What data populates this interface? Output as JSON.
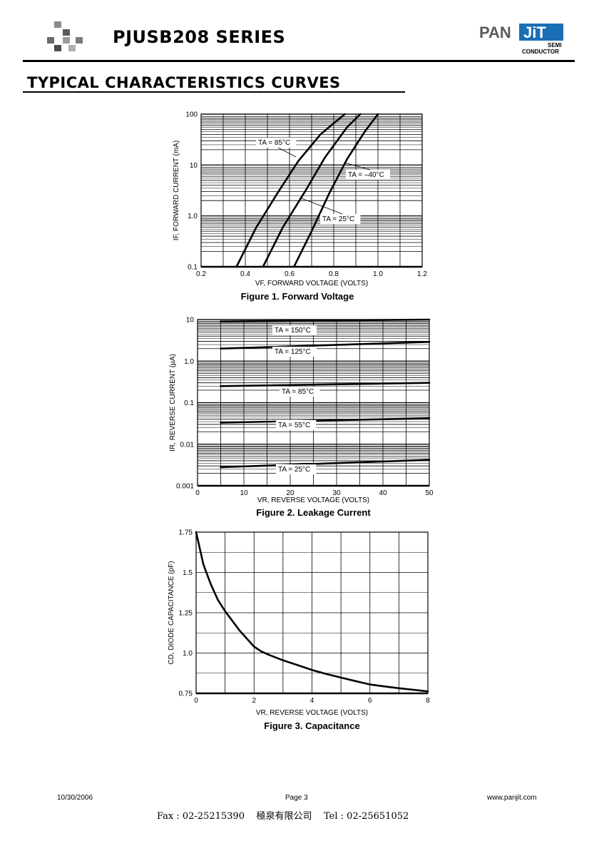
{
  "header": {
    "series_title": "PJUSB208 SERIES",
    "brand_pan": "PAN",
    "brand_jit": "JiT",
    "brand_semi": "SEMI",
    "brand_conductor": "CONDUCTOR",
    "brand_color": "#1a6fb5"
  },
  "section_title": "TYPICAL CHARACTERISTICS CURVES",
  "chart_data": [
    {
      "type": "line",
      "title": "Figure 1. Forward Voltage",
      "xlabel": "VF, FORWARD VOLTAGE (VOLTS)",
      "ylabel": "IF, FORWARD CURRENT (mA)",
      "xlim": [
        0.2,
        1.2
      ],
      "ylim": [
        0.1,
        100
      ],
      "yscale": "log",
      "grid": true,
      "xticks": [
        "0.2",
        "0.4",
        "0.6",
        "0.8",
        "1.0",
        "1.2"
      ],
      "yticks": [
        "0.1",
        "1.0",
        "10",
        "100"
      ],
      "series": [
        {
          "name": "TA = 85°C",
          "x": [
            0.36,
            0.45,
            0.55,
            0.64,
            0.74,
            0.85
          ],
          "y": [
            0.1,
            0.6,
            3.0,
            12,
            40,
            100
          ]
        },
        {
          "name": "TA = 25°C",
          "x": [
            0.48,
            0.57,
            0.67,
            0.76,
            0.86,
            0.92
          ],
          "y": [
            0.1,
            0.6,
            3.0,
            14,
            55,
            100
          ]
        },
        {
          "name": "TA = -40°C",
          "x": [
            0.62,
            0.7,
            0.78,
            0.86,
            0.94,
            1.0
          ],
          "y": [
            0.1,
            0.5,
            2.8,
            13,
            45,
            100
          ]
        }
      ],
      "annotations": [
        "TA = 85°C",
        "TA = –40°C",
        "TA = 25°C"
      ]
    },
    {
      "type": "line",
      "title": "Figure 2. Leakage Current",
      "xlabel": "VR, REVERSE VOLTAGE (VOLTS)",
      "ylabel": "IR, REVERSE CURRENT (µA)",
      "xlim": [
        0,
        50
      ],
      "ylim": [
        0.001,
        10
      ],
      "yscale": "log",
      "grid": true,
      "xticks": [
        "0",
        "10",
        "20",
        "30",
        "40",
        "50"
      ],
      "yticks": [
        "0.001",
        "0.01",
        "0.1",
        "1.0",
        "10"
      ],
      "series": [
        {
          "name": "TA = 150°C",
          "x": [
            5,
            50
          ],
          "y": [
            9.0,
            10.0
          ]
        },
        {
          "name": "TA = 125°C",
          "x": [
            5,
            50
          ],
          "y": [
            2.0,
            2.9
          ]
        },
        {
          "name": "TA = 85°C",
          "x": [
            5,
            50
          ],
          "y": [
            0.25,
            0.3
          ]
        },
        {
          "name": "TA = 55°C",
          "x": [
            5,
            50
          ],
          "y": [
            0.033,
            0.042
          ]
        },
        {
          "name": "TA = 25°C",
          "x": [
            5,
            50
          ],
          "y": [
            0.0028,
            0.0042
          ]
        }
      ],
      "annotations": [
        "TA = 150°C",
        "TA = 125°C",
        "TA = 85°C",
        "TA = 55°C",
        "TA = 25°C"
      ]
    },
    {
      "type": "line",
      "title": "Figure 3. Capacitance",
      "xlabel": "VR, REVERSE VOLTAGE (VOLTS)",
      "ylabel": "CD, DIODE CAPACITANCE (pF)",
      "xlim": [
        0,
        8
      ],
      "ylim": [
        0.75,
        1.75
      ],
      "grid": true,
      "xticks": [
        "0",
        "2",
        "4",
        "6",
        "8"
      ],
      "yticks": [
        "0.75",
        "1.0",
        "1.25",
        "1.5",
        "1.75"
      ],
      "series": [
        {
          "name": "",
          "x": [
            0,
            0.25,
            0.5,
            0.75,
            1.0,
            1.5,
            2.0,
            2.25,
            2.5,
            3.0,
            3.5,
            4.0,
            4.5,
            5.0,
            5.5,
            6.0,
            6.5,
            7.0,
            7.5,
            8.0
          ],
          "y": [
            1.75,
            1.55,
            1.43,
            1.33,
            1.26,
            1.14,
            1.04,
            1.01,
            0.99,
            0.955,
            0.925,
            0.895,
            0.87,
            0.848,
            0.826,
            0.805,
            0.793,
            0.782,
            0.772,
            0.762
          ]
        }
      ],
      "annotations": []
    }
  ],
  "footer": {
    "date": "10/30/2006",
    "page": "Page 3",
    "website": "www.panjit.com",
    "contact": "Fax : 02-25215390    極泉有限公司    Tel : 02-25651052"
  }
}
